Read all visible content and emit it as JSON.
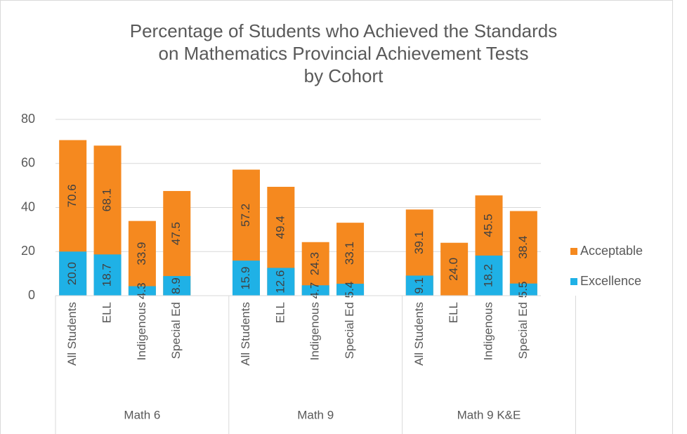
{
  "chart_data": {
    "type": "bar",
    "title": [
      "Percentage of Students who Achieved the Standards",
      "on Mathematics Provincial Achievement Tests",
      "by Cohort"
    ],
    "groups": [
      "Math 6",
      "Math 9",
      "Math 9 K&E"
    ],
    "categories": [
      "All Students",
      "ELL",
      "Indigenous",
      "Special Ed",
      "All Students",
      "ELL",
      "Indigenous",
      "Special Ed",
      "All Students",
      "ELL",
      "Indigenous",
      "Special Ed"
    ],
    "series": [
      {
        "name": "Acceptable",
        "color": "#f5891f",
        "values": [
          70.6,
          68.1,
          33.9,
          47.5,
          57.2,
          49.4,
          24.3,
          33.1,
          39.1,
          24.0,
          45.5,
          38.4
        ],
        "value_labels": [
          "70.6",
          "68.1",
          "33.9",
          "47.5",
          "57.2",
          "49.4",
          "24.3",
          "33.1",
          "39.1",
          "24.0",
          "45.5",
          "38.4"
        ]
      },
      {
        "name": "Excellence",
        "color": "#1fb1e6",
        "values": [
          20.0,
          18.7,
          4.3,
          8.9,
          15.9,
          12.6,
          4.7,
          5.4,
          9.1,
          null,
          18.2,
          5.5
        ],
        "value_labels": [
          "20.0",
          "18.7",
          "4.3",
          "8.9",
          "15.9",
          "12.6",
          "4.7",
          "5.4",
          "9.1",
          null,
          "18.2",
          "5.5"
        ]
      }
    ],
    "ylim": [
      0,
      80
    ],
    "yticks": [
      0,
      20,
      40,
      60,
      80
    ],
    "grid": true,
    "legend": "right"
  }
}
